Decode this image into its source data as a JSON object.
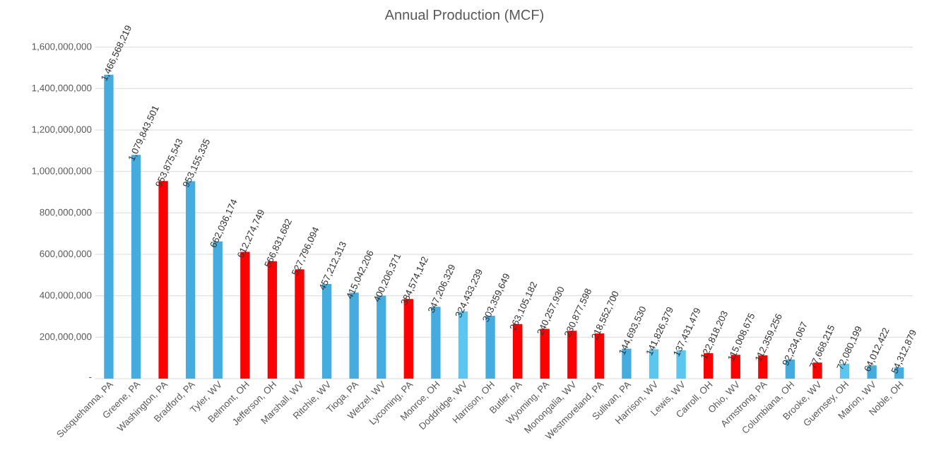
{
  "chart_data": {
    "type": "bar",
    "title": "Annual Production (MCF)",
    "categories": [
      "Susquehanna, PA",
      "Greene, PA",
      "Washington, PA",
      "Bradford, PA",
      "Tyler, WV",
      "Belmont, OH",
      "Jefferson, OH",
      "Marshall, WV",
      "Ritchie, WV",
      "Tioga, PA",
      "Wetzel, WV",
      "Lycoming, PA",
      "Monroe, OH",
      "Doddridge, WV",
      "Harrison, OH",
      "Butler, PA",
      "Wyoming, PA",
      "Monongalia, WV",
      "Westmoreland, PA",
      "Sullivan, PA",
      "Harrison, WV",
      "Lewis, WV",
      "Carroll, OH",
      "Ohio, WV",
      "Armstrong, PA",
      "Columbiana, OH",
      "Brooke, WV",
      "Guernsey, OH",
      "Marion, WV",
      "Noble, OH"
    ],
    "values": [
      1466568219,
      1079843501,
      953875543,
      953155335,
      662036174,
      612274749,
      566831682,
      527796094,
      457212313,
      415042206,
      400206371,
      384574142,
      347206329,
      324433239,
      303359649,
      263105182,
      240257930,
      230877598,
      218552700,
      144693530,
      141826379,
      137431479,
      122818203,
      115008675,
      112359256,
      92234067,
      77668215,
      72080199,
      64012422,
      54312879
    ],
    "value_labels": [
      "1,466,568,219",
      "1,079,843,501",
      "953,875,543",
      "953,155,335",
      "662,036,174",
      "612,274,749",
      "566,831,682",
      "527,796,094",
      "457,212,313",
      "415,042,206",
      "400,206,371",
      "384,574,142",
      "347,206,329",
      "324,433,239",
      "303,359,649",
      "263,105,182",
      "240,257,930",
      "230,877,598",
      "218,552,700",
      "144,693,530",
      "141,826,379",
      "137,431,479",
      "122,818,203",
      "115,008,675",
      "112,359,256",
      "92,234,067",
      "77,668,215",
      "72,080,199",
      "64,012,422",
      "54,312,879"
    ],
    "colors": [
      "#45ACDF",
      "#45ACDF",
      "#FF0000",
      "#45ACDF",
      "#45ACDF",
      "#FF0000",
      "#FF0000",
      "#FF0000",
      "#45ACDF",
      "#45ACDF",
      "#45ACDF",
      "#FF0000",
      "#45ACDF",
      "#5BC6EF",
      "#45ACDF",
      "#FF0000",
      "#FF0000",
      "#FF0000",
      "#FF0000",
      "#45ACDF",
      "#5BC6EF",
      "#5BC6EF",
      "#FF0000",
      "#FF0000",
      "#FF0000",
      "#45ACDF",
      "#FF0000",
      "#5BC6EF",
      "#45ACDF",
      "#45ACDF"
    ],
    "ylim": [
      0,
      1600000000
    ],
    "yticks": [
      {
        "value": 0,
        "label": "-"
      },
      {
        "value": 200000000,
        "label": "200,000,000"
      },
      {
        "value": 400000000,
        "label": "400,000,000"
      },
      {
        "value": 600000000,
        "label": "600,000,000"
      },
      {
        "value": 800000000,
        "label": "800,000,000"
      },
      {
        "value": 1000000000,
        "label": "1,000,000,000"
      },
      {
        "value": 1200000000,
        "label": "1,200,000,000"
      },
      {
        "value": 1400000000,
        "label": "1,400,000,000"
      },
      {
        "value": 1600000000,
        "label": "1,600,000,000"
      }
    ],
    "grid": "y"
  }
}
